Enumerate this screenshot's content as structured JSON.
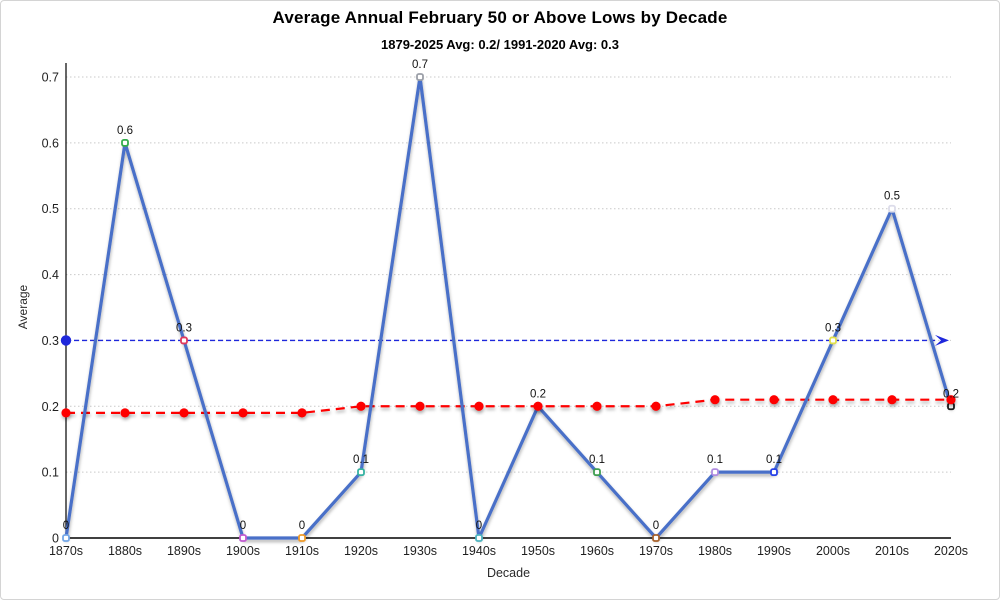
{
  "header": {
    "title": "Average Annual February 50 or Above Lows by Decade",
    "subtitle": "1879-2025 Avg: 0.2/ 1991-2020 Avg: 0.3"
  },
  "chart_data": {
    "type": "line",
    "title": "Average Annual February 50 or Above Lows by Decade",
    "subtitle": "1879-2025 Avg: 0.2/ 1991-2020 Avg: 0.3",
    "xlabel": "Decade",
    "ylabel": "Average",
    "ylim": [
      0,
      0.7
    ],
    "grid": true,
    "legend": false,
    "yticks": [
      "0",
      "0.1",
      "0.2",
      "0.3",
      "0.4",
      "0.5",
      "0.6",
      "0.7"
    ],
    "categories": [
      "1870s",
      "1880s",
      "1890s",
      "1900s",
      "1910s",
      "1920s",
      "1930s",
      "1940s",
      "1950s",
      "1960s",
      "1970s",
      "1980s",
      "1990s",
      "2000s",
      "2010s",
      "2020s"
    ],
    "series": [
      {
        "name": "decade average",
        "color": "#4a6fc8",
        "style": "solid",
        "values": [
          0,
          0.6,
          0.3,
          0,
          0,
          0.1,
          0.7,
          0,
          0.2,
          0.1,
          0,
          0.1,
          0.1,
          0.3,
          0.5,
          0.2
        ],
        "labels": [
          "0",
          "0.6",
          "0.3",
          "0",
          "0",
          "0.1",
          "0.7",
          "0",
          "0.2",
          "0.1",
          "0",
          "0.1",
          "0.1",
          "0.3",
          "0.5",
          "0.2"
        ],
        "marker_colors": [
          "#74a7e8",
          "#34ae4c",
          "#e0395e",
          "#c05ad0",
          "#f09a28",
          "#35b2a2",
          "#9b9fa8",
          "#4fb5c0",
          "#e83030",
          "#3f9e50",
          "#a8622c",
          "#b08ce0",
          "#2640e8",
          "#e2e04a",
          "#dcdcea",
          "#1c1c1c"
        ]
      },
      {
        "name": "running average",
        "color": "#fe0000",
        "style": "dashed",
        "values": [
          0.19,
          0.19,
          0.19,
          0.19,
          0.19,
          0.2,
          0.2,
          0.2,
          0.2,
          0.2,
          0.2,
          0.21,
          0.21,
          0.21,
          0.21,
          0.21
        ]
      }
    ],
    "reference_line": {
      "value": 0.3,
      "color": "#1f28dc",
      "style": "dashed",
      "start_dot": true,
      "arrow_end": true
    },
    "colors": {
      "grid": "#c9c9c9",
      "axis": "#000000"
    }
  }
}
